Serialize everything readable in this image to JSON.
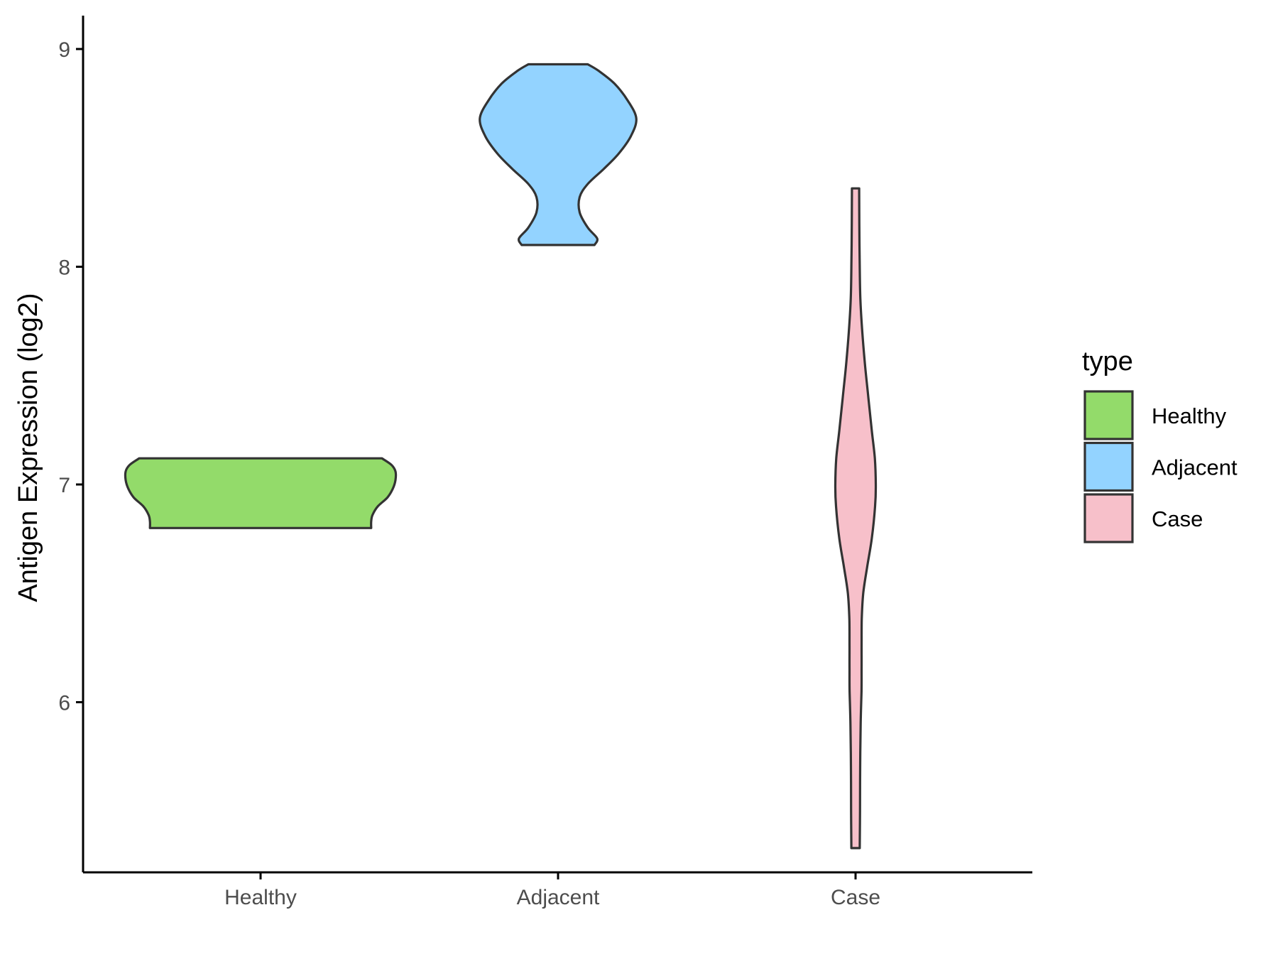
{
  "chart_data": {
    "type": "violin",
    "title": "",
    "xlabel": "",
    "ylabel": "Antigen Expression (log2)",
    "categories": [
      "Healthy",
      "Adjacent",
      "Case"
    ],
    "yticks": [
      6,
      7,
      8,
      9
    ],
    "ylim": [
      5.2,
      9.1
    ],
    "grid": false,
    "legend": {
      "title": "type",
      "position": "right",
      "entries": [
        "Healthy",
        "Adjacent",
        "Case"
      ]
    },
    "colors": {
      "Healthy": "#93db6a",
      "Adjacent": "#93d3ff",
      "Case": "#f7c0ca",
      "outline": "#333333"
    },
    "series": [
      {
        "category": "Healthy",
        "y_min": 6.8,
        "y_max": 7.12,
        "density": [
          [
            6.8,
            0.82
          ],
          [
            6.83,
            0.82
          ],
          [
            6.86,
            0.83
          ],
          [
            6.9,
            0.87
          ],
          [
            6.94,
            0.94
          ],
          [
            6.98,
            0.98
          ],
          [
            7.02,
            1.0
          ],
          [
            7.06,
            1.0
          ],
          [
            7.09,
            0.97
          ],
          [
            7.12,
            0.9
          ]
        ]
      },
      {
        "category": "Adjacent",
        "y_min": 8.1,
        "y_max": 8.93,
        "density": [
          [
            8.1,
            0.27
          ],
          [
            8.13,
            0.29
          ],
          [
            8.18,
            0.22
          ],
          [
            8.25,
            0.16
          ],
          [
            8.32,
            0.16
          ],
          [
            8.38,
            0.22
          ],
          [
            8.45,
            0.34
          ],
          [
            8.52,
            0.45
          ],
          [
            8.6,
            0.54
          ],
          [
            8.68,
            0.58
          ],
          [
            8.76,
            0.52
          ],
          [
            8.84,
            0.42
          ],
          [
            8.9,
            0.3
          ],
          [
            8.93,
            0.22
          ]
        ]
      },
      {
        "category": "Case",
        "y_min": 5.33,
        "y_max": 8.36,
        "density": [
          [
            5.33,
            0.031
          ],
          [
            5.5,
            0.033
          ],
          [
            5.7,
            0.034
          ],
          [
            5.9,
            0.038
          ],
          [
            6.05,
            0.044
          ],
          [
            6.15,
            0.045
          ],
          [
            6.25,
            0.045
          ],
          [
            6.38,
            0.046
          ],
          [
            6.5,
            0.057
          ],
          [
            6.62,
            0.086
          ],
          [
            6.75,
            0.12
          ],
          [
            6.9,
            0.145
          ],
          [
            7.0,
            0.15
          ],
          [
            7.12,
            0.143
          ],
          [
            7.25,
            0.12
          ],
          [
            7.4,
            0.095
          ],
          [
            7.55,
            0.07
          ],
          [
            7.7,
            0.05
          ],
          [
            7.85,
            0.036
          ],
          [
            8.0,
            0.031
          ],
          [
            8.2,
            0.028
          ],
          [
            8.36,
            0.027
          ]
        ]
      }
    ]
  }
}
